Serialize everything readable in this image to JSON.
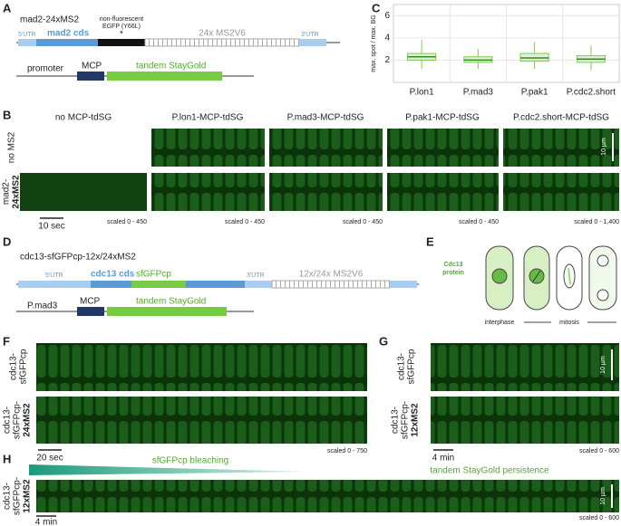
{
  "panels": [
    "A",
    "B",
    "C",
    "D",
    "E",
    "F",
    "G",
    "H"
  ],
  "a": {
    "construct": "mad2-24xMS2",
    "utr5": "5'UTR",
    "cds": "mad2 cds",
    "note1": "non-fluorescent",
    "note2": "EGFP (Y66L)",
    "ms2": "24x MS2V6",
    "utr3": "3'UTR",
    "promoter": "promoter",
    "mcp": "MCP",
    "staygold": "tandem StayGold"
  },
  "b": {
    "columns": [
      "no MCP-tdSG",
      "P.lon1-MCP-tdSG",
      "P.mad3-MCP-tdSG",
      "P.pak1-MCP-tdSG",
      "P.cdc2.short-MCP-tdSG"
    ],
    "row1": "no MS2",
    "row2a": "mad2-",
    "row2b": "24xMS2",
    "scales": [
      "scaled 0 - 450",
      "scaled 0 - 450",
      "scaled 0 - 450",
      "scaled 0 - 450",
      "scaled 0 - 1,400"
    ],
    "time_bar": "10 sec",
    "size_bar": "10 µm"
  },
  "chart_data": {
    "type": "box",
    "ylabel": "max. spot / max. BG",
    "categories": [
      "P.lon1",
      "P.mad3",
      "P.pak1",
      "P.cdc2.short"
    ],
    "whisker_low": [
      1.2,
      1.2,
      1.2,
      1.1
    ],
    "q1": [
      2.0,
      1.8,
      1.9,
      1.8
    ],
    "median": [
      2.3,
      2.0,
      2.2,
      2.1
    ],
    "q3": [
      2.6,
      2.3,
      2.6,
      2.4
    ],
    "whisker_high": [
      3.8,
      3.0,
      3.6,
      3.3
    ],
    "color": "#7ccd4f",
    "ylim": [
      0,
      7
    ],
    "yticks": [
      2,
      4,
      6
    ],
    "grid": true
  },
  "d": {
    "construct": "cdc13-sfGFPcp-12x/24xMS2",
    "utr5": "5'UTR",
    "cds": "cdc13 cds",
    "gfp": "sfGFPcp",
    "utr3": "3'UTR",
    "ms2": "12x/24x MS2V6",
    "promoter": "P.mad3",
    "mcp": "MCP",
    "staygold": "tandem StayGold"
  },
  "e": {
    "protein1": "Cdc13",
    "protein2": "protein",
    "interphase": "interphase",
    "mitosis": "mitosis"
  },
  "f": {
    "row1a": "cdc13-",
    "row1b": "sfGFPcp",
    "row2a": "cdc13-",
    "row2b": "sfGFPcp-",
    "row2c": "24xMS2",
    "time_bar": "20 sec",
    "scale": "scaled 0 - 750"
  },
  "g": {
    "row1a": "cdc13-",
    "row1b": "sfGFPcp",
    "row2a": "cdc13-",
    "row2b": "sfGFPcp-",
    "row2c": "12xMS2",
    "time_bar": "4 min",
    "size_bar": "10 µm",
    "scale": "scaled 0 - 600"
  },
  "h": {
    "bleach": "sfGFPcp bleaching",
    "persist": "tandem StayGold persistence",
    "row1a": "cdc13-",
    "row1b": "sfGFPcp-",
    "row1c": "12xMS2",
    "time_bar": "4 min",
    "size_bar": "10 µm",
    "scale": "scaled 0 - 600"
  }
}
